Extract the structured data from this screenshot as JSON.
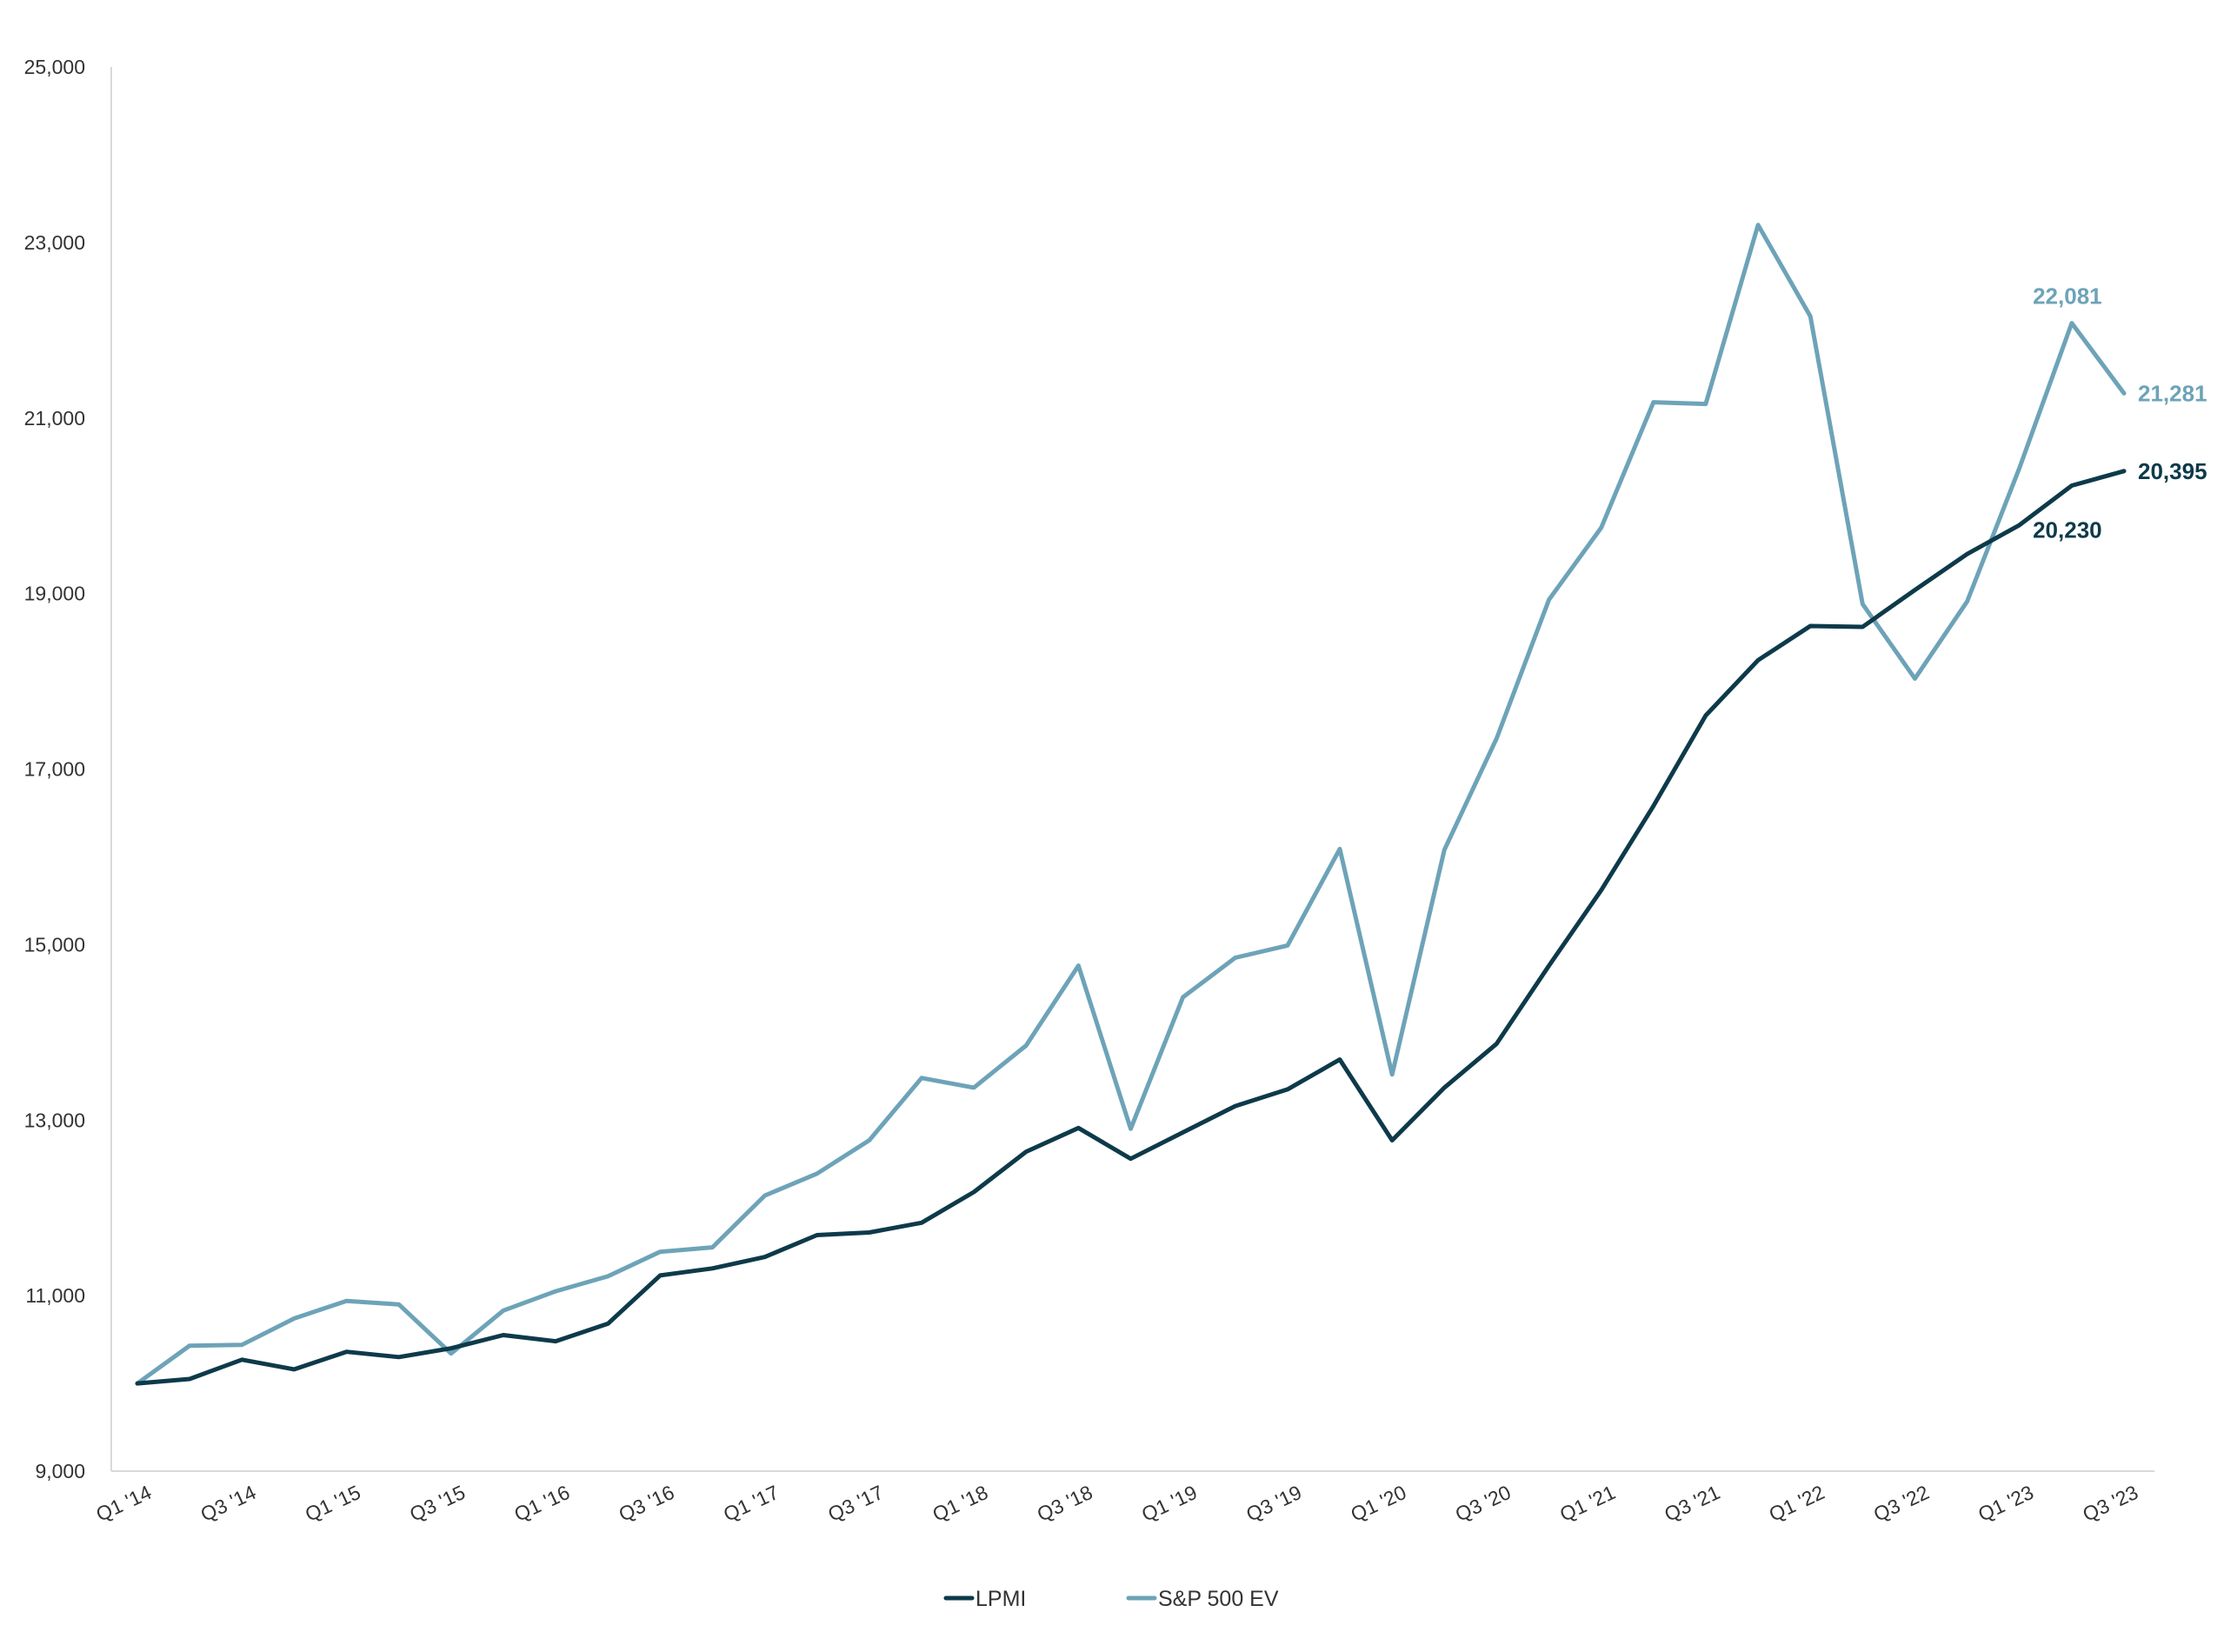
{
  "chart_data": {
    "type": "line",
    "title": "",
    "xlabel": "",
    "ylabel": "",
    "ylim": [
      9000,
      25000
    ],
    "yticks": [
      9000,
      11000,
      13000,
      15000,
      17000,
      19000,
      21000,
      23000,
      25000
    ],
    "ytick_labels": [
      "9,000",
      "11,000",
      "13,000",
      "15,000",
      "17,000",
      "19,000",
      "21,000",
      "23,000",
      "25,000"
    ],
    "grid": false,
    "legend_position": "bottom",
    "categories": [
      "Q1 '14",
      "Q2 '14",
      "Q3 '14",
      "Q4 '14",
      "Q1 '15",
      "Q2 '15",
      "Q3 '15",
      "Q4 '15",
      "Q1 '16",
      "Q2 '16",
      "Q3 '16",
      "Q4 '16",
      "Q1 '17",
      "Q2 '17",
      "Q3 '17",
      "Q4 '17",
      "Q1 '18",
      "Q2 '18",
      "Q3 '18",
      "Q4 '18",
      "Q1 '19",
      "Q2 '19",
      "Q3 '19",
      "Q4 '19",
      "Q1 '20",
      "Q2 '20",
      "Q3 '20",
      "Q4 '20",
      "Q1 '21",
      "Q2 '21",
      "Q3 '21",
      "Q4 '21",
      "Q1 '22",
      "Q2 '22",
      "Q3 '22",
      "Q4 '22",
      "Q1 '23",
      "Q2 '23",
      "Q3 '23"
    ],
    "xtick_labels": [
      "Q1 '14",
      "Q3 '14",
      "Q1 '15",
      "Q3 '15",
      "Q1 '16",
      "Q3 '16",
      "Q1 '17",
      "Q3 '17",
      "Q1 '18",
      "Q3 '18",
      "Q1 '19",
      "Q3 '19",
      "Q1 '20",
      "Q3 '20",
      "Q1 '21",
      "Q3 '21",
      "Q1 '22",
      "Q3 '22",
      "Q1 '23",
      "Q3 '23"
    ],
    "series": [
      {
        "name": "LPMI",
        "color": "#0d3a4a",
        "values": [
          10000,
          10050,
          10270,
          10160,
          10360,
          10300,
          10400,
          10550,
          10480,
          10680,
          11230,
          11310,
          11440,
          11690,
          11720,
          11830,
          12180,
          12640,
          12910,
          12560,
          12860,
          13160,
          13350,
          13690,
          12770,
          13370,
          13870,
          14760,
          15620,
          16580,
          17610,
          18240,
          18630,
          18620,
          19040,
          19450,
          19780,
          20230,
          20395
        ]
      },
      {
        "name": "S&P 500 EV",
        "color": "#6da3b8",
        "values": [
          10000,
          10430,
          10440,
          10740,
          10940,
          10900,
          10340,
          10830,
          11050,
          11220,
          11500,
          11550,
          12140,
          12390,
          12770,
          13480,
          13370,
          13850,
          14760,
          12900,
          14400,
          14850,
          14990,
          16090,
          13520,
          16080,
          17350,
          18930,
          19750,
          21180,
          21160,
          23200,
          22160,
          18880,
          18030,
          18910,
          20430,
          22081,
          21281
        ]
      }
    ],
    "annotations": [
      {
        "series": "LPMI",
        "label": "20,230",
        "index": 37
      },
      {
        "series": "LPMI",
        "label": "20,395",
        "index": 38
      },
      {
        "series": "S&P 500 EV",
        "label": "22,081",
        "index": 37
      },
      {
        "series": "S&P 500 EV",
        "label": "21,281",
        "index": 38
      }
    ]
  }
}
